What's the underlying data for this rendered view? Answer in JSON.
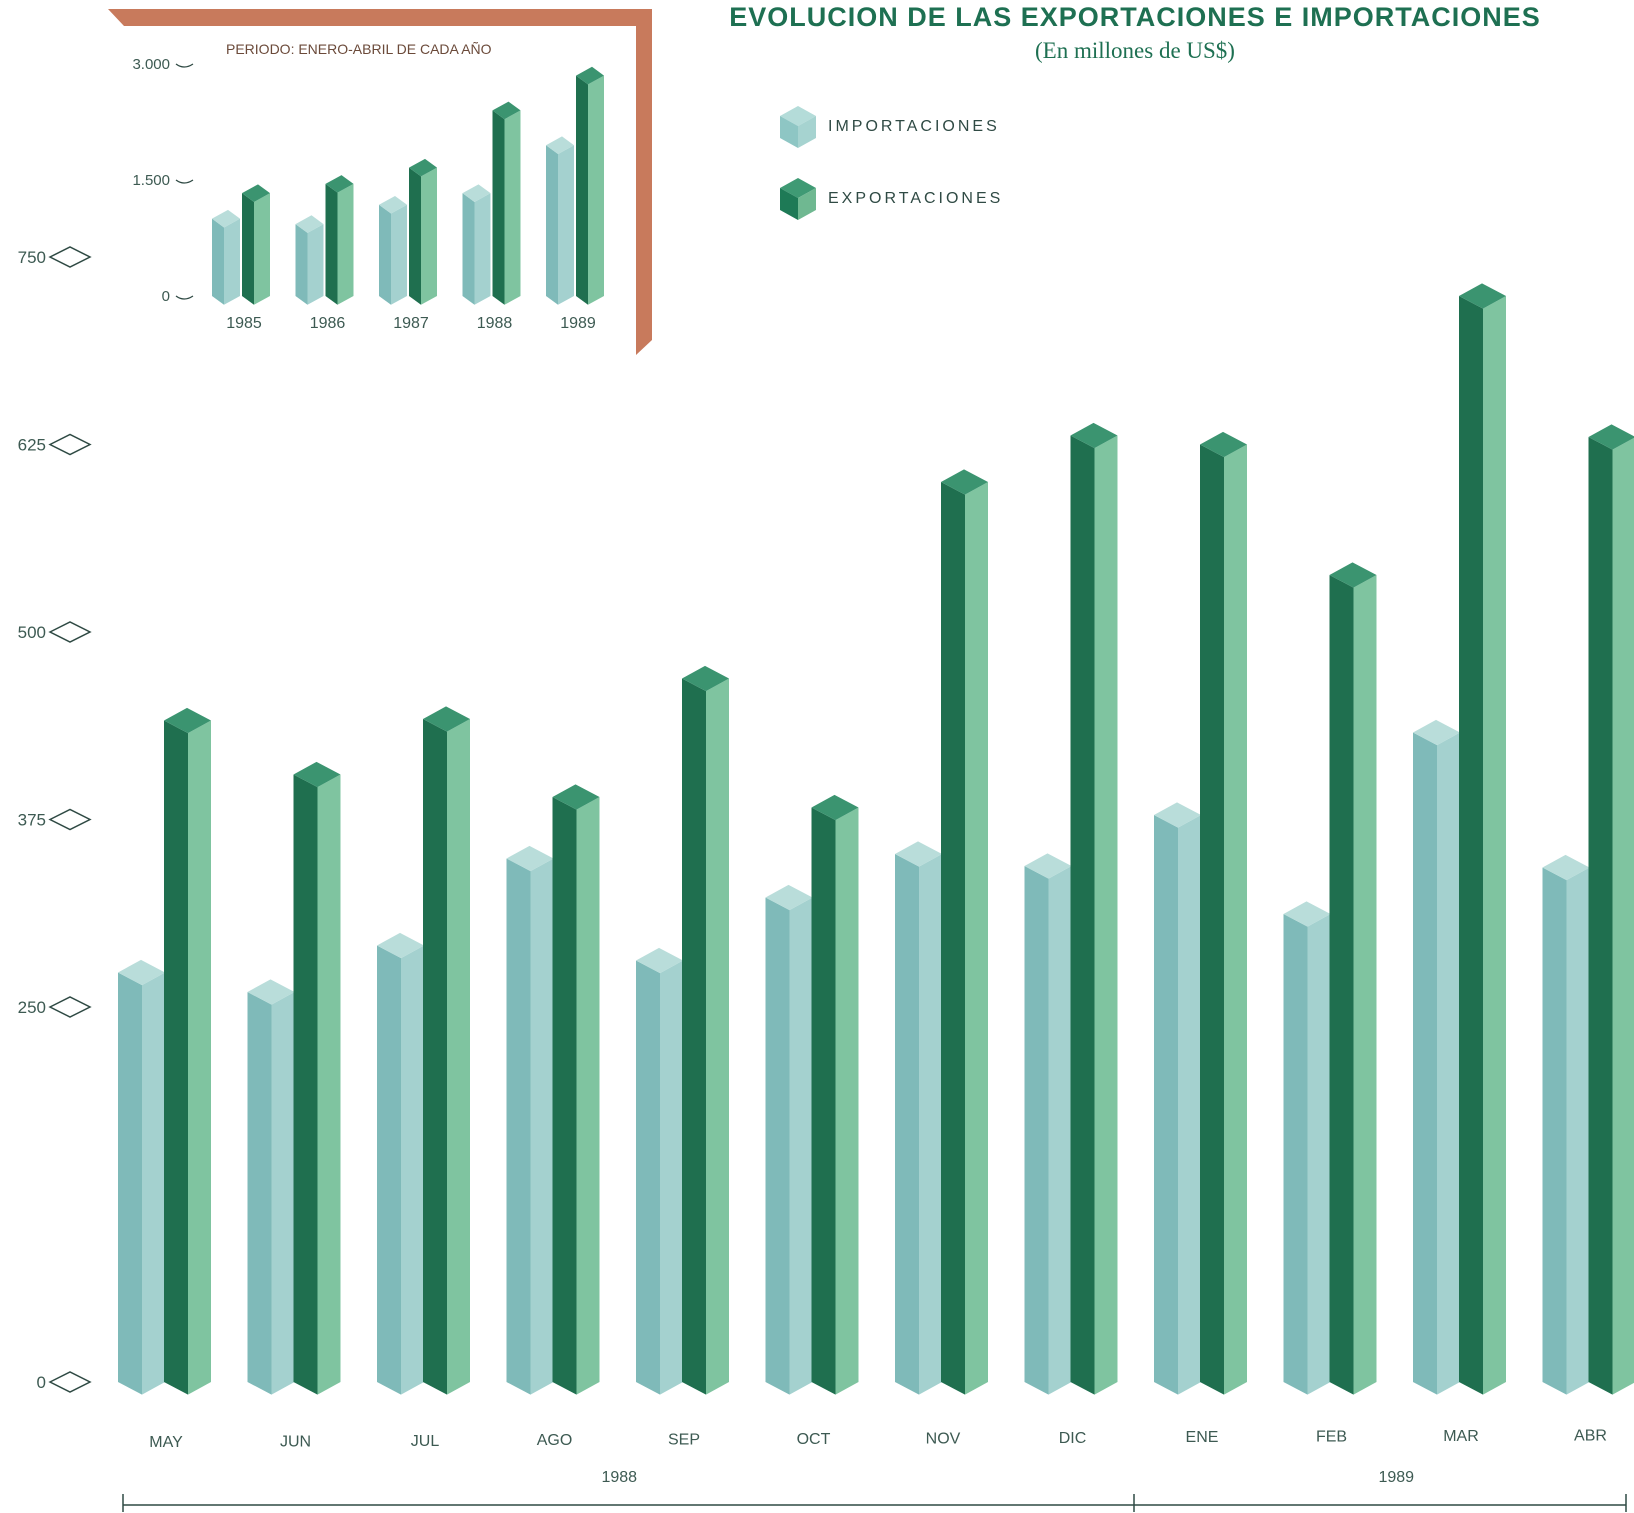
{
  "title": "EVOLUCION DE LAS EXPORTACIONES E IMPORTACIONES",
  "subtitle": "(En millones de US$)",
  "colors": {
    "imports": "#8ec6c4",
    "exports": "#1e7a56",
    "exports_light": "#7fc4a0",
    "inset_frame": "#c87a5c",
    "axis": "#2f4a44",
    "text": "#3d5a52"
  },
  "legend": {
    "imports_label": "IMPORTACIONES",
    "exports_label": "EXPORTACIONES"
  },
  "chart_data": [
    {
      "type": "bar",
      "title": "EVOLUCION DE LAS EXPORTACIONES E IMPORTACIONES",
      "subtitle": "(En millones de US$)",
      "categories": [
        "MAY",
        "JUN",
        "JUL",
        "AGO",
        "SEP",
        "OCT",
        "NOV",
        "DIC",
        "ENE",
        "FEB",
        "MAR",
        "ABR"
      ],
      "groups": [
        {
          "label": "1988",
          "categories": [
            "MAY",
            "JUN",
            "JUL",
            "AGO",
            "SEP",
            "OCT",
            "NOV",
            "DIC"
          ]
        },
        {
          "label": "1989",
          "categories": [
            "ENE",
            "FEB",
            "MAR",
            "ABR"
          ]
        }
      ],
      "series": [
        {
          "name": "IMPORTACIONES",
          "values": [
            273,
            260,
            291,
            349,
            281,
            323,
            352,
            344,
            378,
            312,
            433,
            343
          ]
        },
        {
          "name": "EXPORTACIONES",
          "values": [
            441,
            405,
            442,
            390,
            469,
            383,
            600,
            631,
            625,
            538,
            724,
            630
          ]
        }
      ],
      "yticks": [
        0,
        250,
        375,
        500,
        625,
        750
      ],
      "ylim": [
        0,
        750
      ],
      "grid": false,
      "legend_position": "top-right"
    },
    {
      "type": "bar",
      "title": "PERIODO: ENERO-ABRIL DE CADA AÑO",
      "categories": [
        "1985",
        "1986",
        "1987",
        "1988",
        "1989"
      ],
      "series": [
        {
          "name": "IMPORTACIONES",
          "values": [
            1000,
            930,
            1180,
            1330,
            1950
          ]
        },
        {
          "name": "EXPORTACIONES",
          "values": [
            1330,
            1450,
            1660,
            2400,
            2850
          ]
        }
      ],
      "yticks": [
        0,
        1500,
        3000
      ],
      "ytick_labels": [
        "0",
        "1.500",
        "3.000"
      ],
      "ylim": [
        0,
        3000
      ],
      "grid": false
    }
  ]
}
